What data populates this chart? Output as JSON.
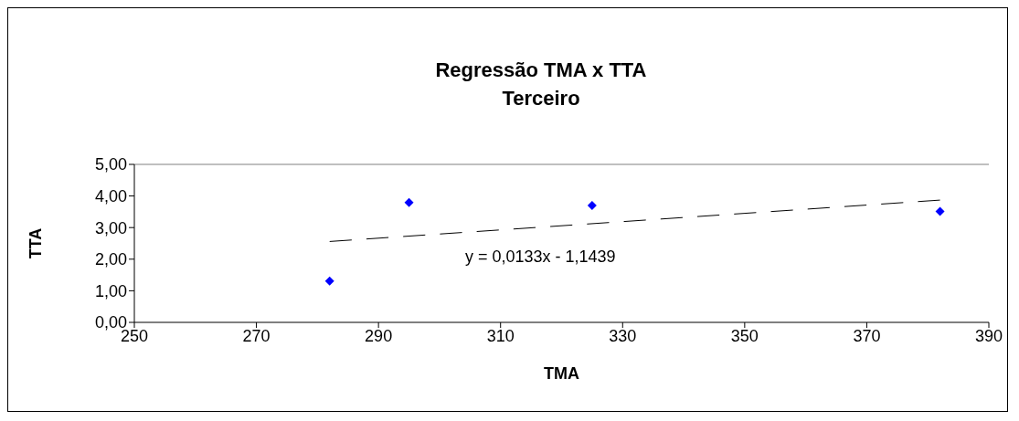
{
  "chart_data": {
    "type": "scatter",
    "title": "Regressão TMA x TTA",
    "subtitle": "Terceiro",
    "xlabel": "TMA",
    "ylabel": "TTA",
    "x": [
      282,
      295,
      325,
      382
    ],
    "series": [
      {
        "color": "#0000ff",
        "values": [
          1.31,
          3.79,
          3.7,
          3.51
        ],
        "marker": "diamond"
      },
      {
        "type": "line",
        "color": "#000000",
        "x": [
          282,
          382
        ],
        "values": [
          2.56,
          3.87
        ],
        "line_style": "dashed",
        "marker": "none"
      }
    ],
    "xlim": [
      250,
      390
    ],
    "xticks": [
      250,
      270,
      290,
      310,
      330,
      350,
      370,
      390
    ],
    "ylim": [
      0,
      5
    ],
    "yticks": [
      {
        "value": 0,
        "label": "0,00"
      },
      {
        "value": 1,
        "label": "1,00"
      },
      {
        "value": 2,
        "label": "2,00"
      },
      {
        "value": 3,
        "label": "3,00"
      },
      {
        "value": 4,
        "label": "4,00"
      },
      {
        "value": 5,
        "label": "5,00"
      }
    ],
    "annotations": [
      "y = 0,0133x - 1,1439"
    ],
    "grid": false,
    "legend": false
  }
}
